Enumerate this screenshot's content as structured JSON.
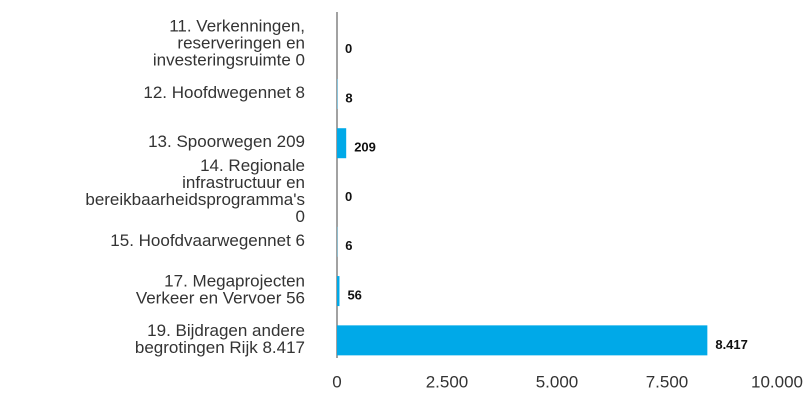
{
  "chart_data": {
    "type": "barh",
    "categories": [
      "11. Verkenningen, reserveringen en investeringsruimte 0",
      "12. Hoofdwegennet 8",
      "13. Spoorwegen 209",
      "14. Regionale infrastructuur en bereikbaarheidsprogramma's 0",
      "15. Hoofdvaarwegennet 6",
      "17. Megaprojecten Verkeer en Vervoer 56",
      "19. Bijdragen andere begrotingen Rijk 8.417"
    ],
    "values": [
      0,
      8,
      209,
      0,
      6,
      56,
      8417
    ],
    "value_labels": [
      "0",
      "8",
      "209",
      "0",
      "6",
      "56",
      "8.417"
    ],
    "color": "#00a9e8",
    "xlim": [
      0,
      10000
    ],
    "xticks": [
      0,
      {
        "value": 2500,
        "label": "2.500"
      },
      {
        "value": 5000,
        "label": "5.000"
      },
      {
        "value": 7500,
        "label": "7.500"
      },
      {
        "value": 10000,
        "label": "10.000"
      }
    ],
    "grid": false
  }
}
